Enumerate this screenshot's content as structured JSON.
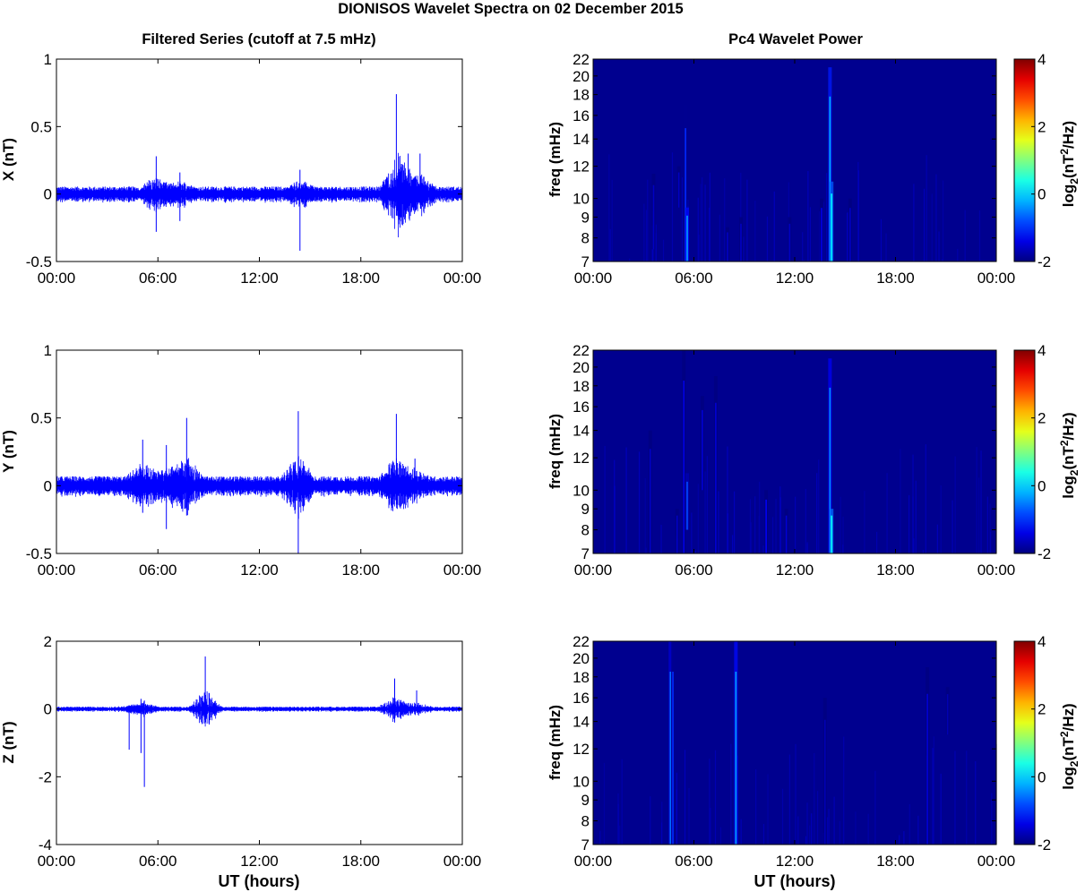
{
  "figure": {
    "title": "DIONISOS Wavelet Spectra on 02 December 2015",
    "left_title": "Filtered Series (cutoff at 7.5 mHz)",
    "right_title": "Pc4 Wavelet Power"
  },
  "colors": {
    "series": "#0000ff",
    "background": "#00008f",
    "axis": "#000000"
  },
  "chart_data": [
    {
      "type": "line",
      "ylabel": "X (nT)",
      "xlabel": "",
      "xlim": [
        "00:00",
        "24:00"
      ],
      "x_tick_labels": [
        "00:00",
        "06:00",
        "12:00",
        "18:00",
        "00:00"
      ],
      "ylim": [
        -0.5,
        1
      ],
      "y_ticks": [
        -0.5,
        0,
        0.5,
        1
      ],
      "y_tick_labels": [
        "-0.5",
        "0",
        "0.5",
        "1"
      ],
      "series": [
        {
          "values_description_hours": [
            0,
            24
          ],
          "baseline_amplitude": 0.04,
          "spikes": [
            {
              "hour": 5.9,
              "high": 0.28,
              "low": -0.28
            },
            {
              "hour": 7.3,
              "high": 0.16,
              "low": -0.2
            },
            {
              "hour": 14.4,
              "high": 0.18,
              "low": -0.42
            },
            {
              "hour": 20.1,
              "high": 0.74,
              "low": -0.16
            },
            {
              "hour": 20.8,
              "high": 0.3,
              "low": -0.12
            },
            {
              "hour": 21.5,
              "high": 0.3,
              "low": -0.08
            }
          ]
        }
      ]
    },
    {
      "type": "line",
      "ylabel": "Y (nT)",
      "xlabel": "",
      "xlim": [
        "00:00",
        "24:00"
      ],
      "x_tick_labels": [
        "00:00",
        "06:00",
        "12:00",
        "18:00",
        "00:00"
      ],
      "ylim": [
        -0.5,
        1
      ],
      "y_ticks": [
        -0.5,
        0,
        0.5,
        1
      ],
      "y_tick_labels": [
        "-0.5",
        "0",
        "0.5",
        "1"
      ],
      "series": [
        {
          "baseline_amplitude": 0.05,
          "spikes": [
            {
              "hour": 5.1,
              "high": 0.34,
              "low": -0.2
            },
            {
              "hour": 6.5,
              "high": 0.3,
              "low": -0.32
            },
            {
              "hour": 7.7,
              "high": 0.5,
              "low": -0.22
            },
            {
              "hour": 14.3,
              "high": 0.55,
              "low": -0.5
            },
            {
              "hour": 20.1,
              "high": 0.53,
              "low": -0.14
            },
            {
              "hour": 21.2,
              "high": 0.2,
              "low": -0.1
            }
          ]
        }
      ]
    },
    {
      "type": "line",
      "ylabel": "Z (nT)",
      "xlabel": "UT (hours)",
      "xlim": [
        "00:00",
        "24:00"
      ],
      "x_tick_labels": [
        "00:00",
        "06:00",
        "12:00",
        "18:00",
        "00:00"
      ],
      "ylim": [
        -4,
        2
      ],
      "y_ticks": [
        -4,
        -2,
        0,
        2
      ],
      "y_tick_labels": [
        "-4",
        "-2",
        "0",
        "2"
      ],
      "series": [
        {
          "baseline_amplitude": 0.05,
          "spikes": [
            {
              "hour": 4.3,
              "high": 0.1,
              "low": -1.2
            },
            {
              "hour": 5.0,
              "high": 0.3,
              "low": -1.3
            },
            {
              "hour": 5.2,
              "high": 0.25,
              "low": -2.3
            },
            {
              "hour": 8.8,
              "high": 1.55,
              "low": -0.3
            },
            {
              "hour": 20.0,
              "high": 0.9,
              "low": -0.4
            },
            {
              "hour": 21.3,
              "high": 0.55,
              "low": -0.1
            }
          ]
        }
      ]
    },
    {
      "type": "heatmap",
      "ylabel": "freq (mHz)",
      "xlabel": "",
      "xlim": [
        "00:00",
        "24:00"
      ],
      "x_tick_labels": [
        "00:00",
        "06:00",
        "12:00",
        "18:00",
        "00:00"
      ],
      "ylim": [
        7,
        22
      ],
      "y_scale": "log",
      "y_ticks": [
        7,
        8,
        9,
        10,
        12,
        14,
        16,
        18,
        20,
        22
      ],
      "colorbar": {
        "range": [
          -2,
          4
        ],
        "ticks": [
          "4",
          "2",
          "0",
          "-2"
        ],
        "label": "log2(nT2/Hz)",
        "colormap": "jet"
      },
      "streaks": [
        {
          "hour": 3.6,
          "fmin": 7.5,
          "fmax": 11.5,
          "level": -1.6
        },
        {
          "hour": 5.1,
          "fmin": 9.5,
          "fmax": 12,
          "level": -1.6
        },
        {
          "hour": 5.5,
          "fmin": 7,
          "fmax": 17,
          "level": -1.0
        },
        {
          "hour": 5.6,
          "fmin": 7,
          "fmax": 9.5,
          "level": -0.3
        },
        {
          "hour": 8.0,
          "fmin": 7,
          "fmax": 8.5,
          "level": -1.6
        },
        {
          "hour": 8.8,
          "fmin": 7,
          "fmax": 9,
          "level": -1.6
        },
        {
          "hour": 11.7,
          "fmin": 7,
          "fmax": 9,
          "level": -1.6
        },
        {
          "hour": 13.6,
          "fmin": 7,
          "fmax": 10,
          "level": -1.4
        },
        {
          "hour": 14.1,
          "fmin": 7,
          "fmax": 21,
          "level": -0.2
        },
        {
          "hour": 14.2,
          "fmin": 7,
          "fmax": 11,
          "level": 0.2
        },
        {
          "hour": 15.3,
          "fmin": 7,
          "fmax": 10,
          "level": -1.6
        }
      ]
    },
    {
      "type": "heatmap",
      "ylabel": "freq (mHz)",
      "xlabel": "",
      "xlim": [
        "00:00",
        "24:00"
      ],
      "x_tick_labels": [
        "00:00",
        "06:00",
        "12:00",
        "18:00",
        "00:00"
      ],
      "ylim": [
        7,
        22
      ],
      "y_scale": "log",
      "y_ticks": [
        7,
        8,
        9,
        10,
        12,
        14,
        16,
        18,
        20,
        22
      ],
      "colorbar": {
        "range": [
          -2,
          4
        ],
        "ticks": [
          "4",
          "2",
          "0",
          "-2"
        ],
        "label": "log2(nT2/Hz)",
        "colormap": "jet"
      },
      "streaks": [
        {
          "hour": 3.4,
          "fmin": 7,
          "fmax": 14,
          "level": -1.6
        },
        {
          "hour": 5.0,
          "fmin": 7,
          "fmax": 9,
          "level": -1.6
        },
        {
          "hour": 5.4,
          "fmin": 7,
          "fmax": 22,
          "level": -1.4
        },
        {
          "hour": 5.6,
          "fmin": 8,
          "fmax": 11,
          "level": -0.8
        },
        {
          "hour": 6.5,
          "fmin": 10,
          "fmax": 17,
          "level": -1.5
        },
        {
          "hour": 7.3,
          "fmin": 7,
          "fmax": 19,
          "level": -1.5
        },
        {
          "hour": 10.3,
          "fmin": 7,
          "fmax": 10,
          "level": -1.3
        },
        {
          "hour": 11.5,
          "fmin": 7,
          "fmax": 9,
          "level": -1.5
        },
        {
          "hour": 14.1,
          "fmin": 7,
          "fmax": 21,
          "level": -0.4
        },
        {
          "hour": 14.2,
          "fmin": 7,
          "fmax": 9,
          "level": 0.3
        }
      ]
    },
    {
      "type": "heatmap",
      "ylabel": "freq (mHz)",
      "xlabel": "UT (hours)",
      "xlim": [
        "00:00",
        "24:00"
      ],
      "x_tick_labels": [
        "00:00",
        "06:00",
        "12:00",
        "18:00",
        "00:00"
      ],
      "ylim": [
        7,
        22
      ],
      "y_scale": "log",
      "y_ticks": [
        7,
        8,
        9,
        10,
        12,
        14,
        16,
        18,
        20,
        22
      ],
      "colorbar": {
        "range": [
          -2,
          4
        ],
        "ticks": [
          "4",
          "2",
          "0",
          "-2"
        ],
        "label": "log2(nT2/Hz)",
        "colormap": "jet"
      },
      "streaks": [
        {
          "hour": 4.6,
          "fmin": 7,
          "fmax": 22,
          "level": -0.6
        },
        {
          "hour": 4.75,
          "fmin": 7,
          "fmax": 22,
          "level": -1.0
        },
        {
          "hour": 8.5,
          "fmin": 7,
          "fmax": 22,
          "level": -0.3
        },
        {
          "hour": 13.8,
          "fmin": 7,
          "fmax": 16,
          "level": -1.7
        },
        {
          "hour": 19.9,
          "fmin": 7,
          "fmax": 19,
          "level": -1.5
        },
        {
          "hour": 21.1,
          "fmin": 13,
          "fmax": 17,
          "level": -1.7
        }
      ]
    }
  ]
}
